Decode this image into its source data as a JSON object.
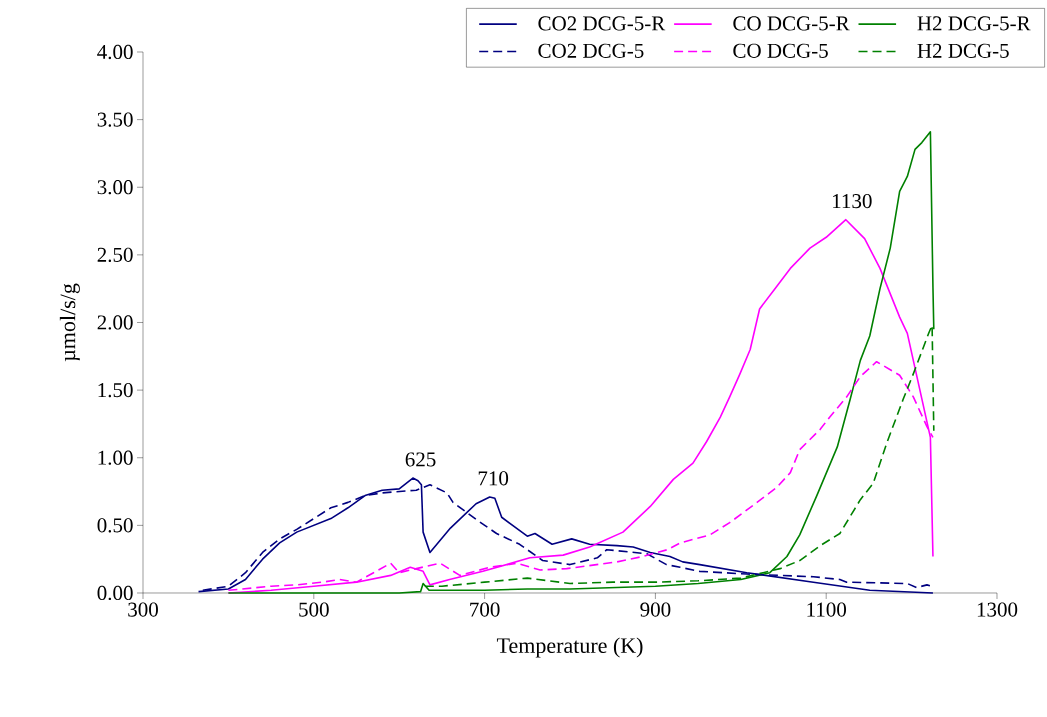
{
  "chart_data": {
    "type": "line",
    "xlabel": "Temperature (K)",
    "ylabel": "µmol/s/g",
    "xlim": [
      300,
      1300
    ],
    "xticks": [
      300,
      500,
      700,
      900,
      1100,
      1300
    ],
    "ylim": [
      0,
      4
    ],
    "yticks": [
      {
        "value": 0,
        "label": "0.00"
      },
      {
        "value": 0.5,
        "label": "0.50"
      },
      {
        "value": 1,
        "label": "1.00"
      },
      {
        "value": 1.5,
        "label": "1.50"
      },
      {
        "value": 2,
        "label": "2.00"
      },
      {
        "value": 2.5,
        "label": "2.50"
      },
      {
        "value": 3,
        "label": "3.00"
      },
      {
        "value": 3.5,
        "label": "3.50"
      },
      {
        "value": 4,
        "label": "4.00"
      }
    ],
    "grid": false,
    "legend": "top right",
    "marker": "none",
    "annotations": [
      {
        "text": "625",
        "x": 625,
        "y": 0.85
      },
      {
        "text": "710",
        "x": 710,
        "y": 0.71
      },
      {
        "text": "1130",
        "x": 1130,
        "y": 2.76
      }
    ],
    "series": [
      {
        "name": "CO2 DCG-5-R",
        "color": "#000080",
        "line_style": "solid",
        "x": [
          365,
          400,
          420,
          440,
          460,
          480,
          500,
          520,
          540,
          560,
          580,
          600,
          616,
          622,
          626,
          628,
          636,
          660,
          690,
          706,
          712,
          720,
          750,
          759,
          779,
          802,
          823,
          855,
          874,
          894,
          917,
          932,
          952,
          1007,
          1085,
          1151,
          1225
        ],
        "values": [
          0.01,
          0.03,
          0.1,
          0.25,
          0.37,
          0.45,
          0.5,
          0.55,
          0.63,
          0.72,
          0.76,
          0.77,
          0.85,
          0.83,
          0.8,
          0.45,
          0.3,
          0.48,
          0.66,
          0.71,
          0.7,
          0.56,
          0.42,
          0.44,
          0.36,
          0.4,
          0.36,
          0.35,
          0.34,
          0.3,
          0.27,
          0.23,
          0.21,
          0.15,
          0.08,
          0.02,
          0.0
        ]
      },
      {
        "name": "CO DCG-5-R",
        "color": "#ff00ff",
        "line_style": "solid",
        "x": [
          400,
          450,
          500,
          550,
          590,
          613,
          628,
          636,
          659,
          698,
          753,
          792,
          823,
          862,
          894,
          921,
          944,
          960,
          976,
          987,
          999,
          1011,
          1022,
          1040,
          1058,
          1081,
          1100,
          1123,
          1145,
          1163,
          1186,
          1195,
          1222,
          1225
        ],
        "values": [
          0.0,
          0.02,
          0.05,
          0.08,
          0.13,
          0.19,
          0.16,
          0.06,
          0.1,
          0.16,
          0.26,
          0.28,
          0.34,
          0.45,
          0.64,
          0.84,
          0.96,
          1.12,
          1.3,
          1.45,
          1.62,
          1.8,
          2.1,
          2.25,
          2.4,
          2.55,
          2.63,
          2.76,
          2.62,
          2.4,
          2.04,
          1.92,
          1.15,
          0.27
        ]
      },
      {
        "name": "H2 DCG-5-R",
        "color": "#008000",
        "line_style": "solid",
        "x": [
          400,
          500,
          600,
          625,
          628,
          635,
          700,
          750,
          800,
          900,
          950,
          1000,
          1034,
          1054,
          1069,
          1089,
          1113,
          1128,
          1140,
          1151,
          1163,
          1175,
          1186,
          1195,
          1204,
          1212,
          1222,
          1225,
          1226
        ],
        "values": [
          0.0,
          0.0,
          0.0,
          0.01,
          0.07,
          0.02,
          0.02,
          0.03,
          0.03,
          0.05,
          0.07,
          0.1,
          0.15,
          0.27,
          0.43,
          0.72,
          1.08,
          1.43,
          1.72,
          1.9,
          2.25,
          2.55,
          2.97,
          3.08,
          3.28,
          3.33,
          3.41,
          2.26,
          1.95
        ]
      },
      {
        "name": "CO2 DCG-5",
        "color": "#000080",
        "line_style": "dashed",
        "x": [
          370,
          400,
          420,
          440,
          460,
          480,
          500,
          520,
          540,
          560,
          580,
          600,
          620,
          636,
          656,
          663,
          691,
          714,
          741,
          768,
          800,
          832,
          843,
          890,
          913,
          929,
          952,
          1007,
          1085,
          1116,
          1124,
          1195,
          1206,
          1218,
          1224
        ],
        "values": [
          0.02,
          0.05,
          0.15,
          0.3,
          0.4,
          0.47,
          0.55,
          0.63,
          0.67,
          0.72,
          0.74,
          0.75,
          0.76,
          0.8,
          0.74,
          0.67,
          0.54,
          0.44,
          0.36,
          0.24,
          0.21,
          0.26,
          0.32,
          0.29,
          0.21,
          0.19,
          0.16,
          0.14,
          0.12,
          0.1,
          0.08,
          0.07,
          0.04,
          0.06,
          0.05
        ]
      },
      {
        "name": "CO DCG-5",
        "color": "#ff00ff",
        "line_style": "dashed",
        "x": [
          400,
          450,
          480,
          510,
          530,
          550,
          570,
          590,
          600,
          620,
          648,
          671,
          706,
          738,
          765,
          796,
          855,
          885,
          914,
          929,
          964,
          987,
          1019,
          1042,
          1058,
          1069,
          1093,
          1104,
          1124,
          1140,
          1159,
          1186,
          1202,
          1218,
          1225
        ],
        "values": [
          0.02,
          0.05,
          0.06,
          0.08,
          0.1,
          0.08,
          0.15,
          0.22,
          0.15,
          0.18,
          0.22,
          0.13,
          0.19,
          0.22,
          0.17,
          0.18,
          0.23,
          0.27,
          0.32,
          0.37,
          0.43,
          0.52,
          0.67,
          0.78,
          0.89,
          1.06,
          1.21,
          1.3,
          1.45,
          1.6,
          1.71,
          1.61,
          1.45,
          1.23,
          1.15
        ]
      },
      {
        "name": "H2 DCG-5",
        "color": "#008000",
        "line_style": "dashed",
        "x": [
          630,
          650,
          700,
          750,
          800,
          850,
          900,
          950,
          1000,
          1046,
          1069,
          1093,
          1116,
          1140,
          1155,
          1171,
          1190,
          1202,
          1220,
          1224,
          1226
        ],
        "values": [
          0.05,
          0.05,
          0.08,
          0.11,
          0.07,
          0.08,
          0.08,
          0.09,
          0.11,
          0.18,
          0.24,
          0.35,
          0.44,
          0.69,
          0.81,
          1.11,
          1.43,
          1.62,
          1.92,
          1.98,
          1.2
        ]
      }
    ]
  }
}
